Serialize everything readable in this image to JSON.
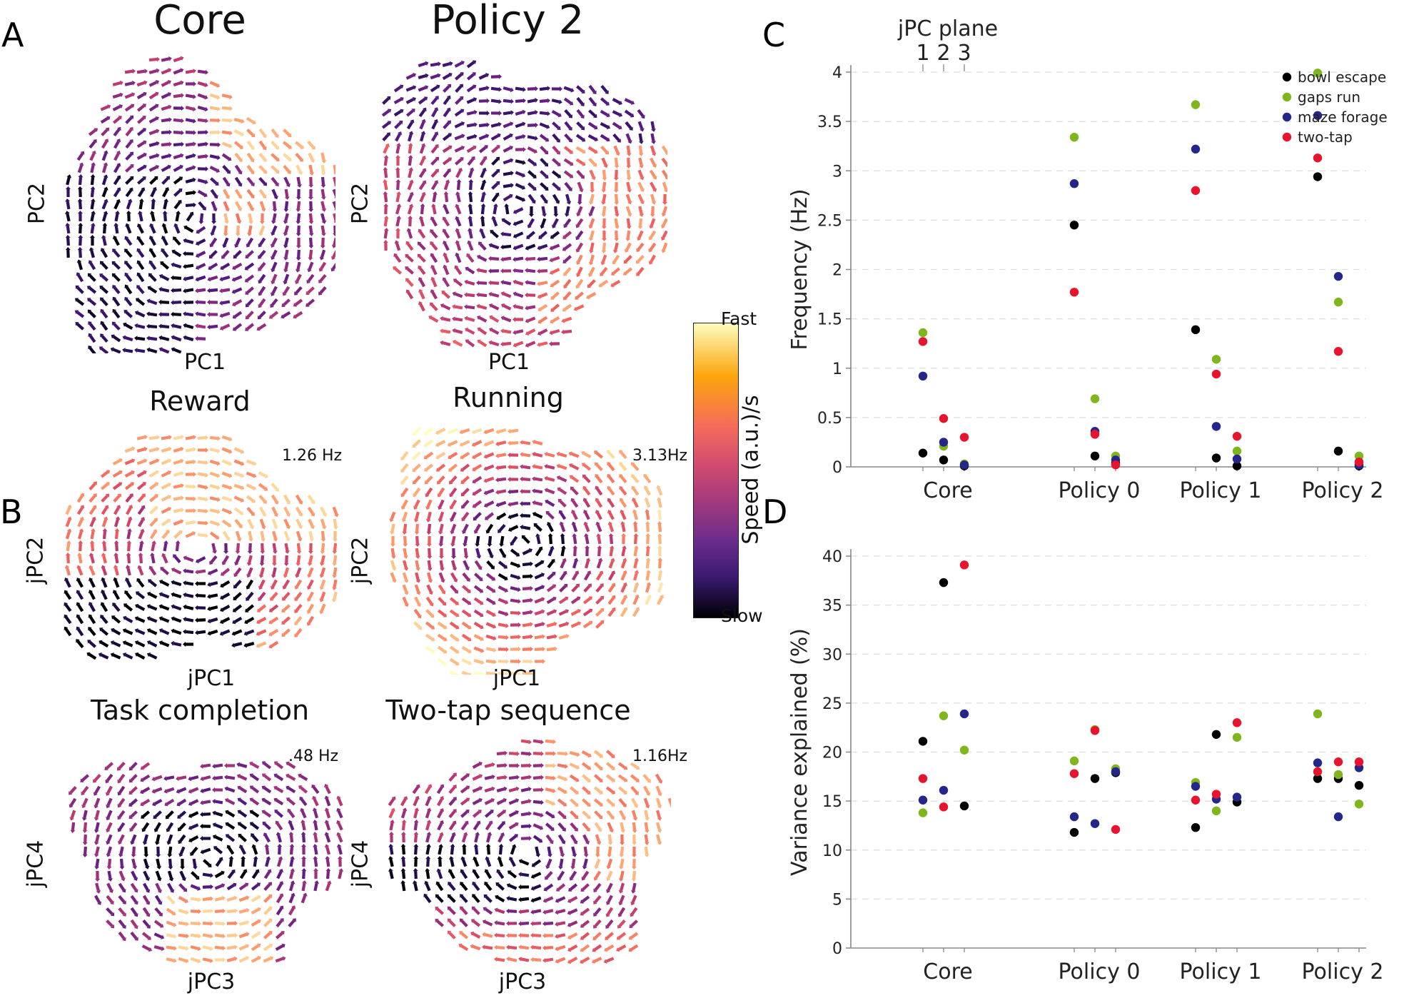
{
  "panels": {
    "A": {
      "letter": "A",
      "left": {
        "title": "Core",
        "xlabel": "PC1",
        "ylabel": "PC2"
      },
      "right": {
        "title": "Policy 2",
        "xlabel": "PC1",
        "ylabel": "PC2"
      }
    },
    "B": {
      "letter": "B",
      "plots": [
        {
          "title": "Reward",
          "xlabel": "jPC1",
          "ylabel": "jPC2",
          "freq": "1.26 Hz"
        },
        {
          "title": "Running",
          "xlabel": "jPC1",
          "ylabel": "jPC2",
          "freq": "3.13Hz"
        },
        {
          "title": "Task completion",
          "xlabel": "jPC3",
          "ylabel": "jPC4",
          "freq": ".48 Hz"
        },
        {
          "title": "Two-tap sequence",
          "xlabel": "jPC3",
          "ylabel": "jPC4",
          "freq": "1.16Hz"
        }
      ]
    },
    "C": {
      "letter": "C"
    },
    "D": {
      "letter": "D"
    }
  },
  "colorbar": {
    "top": "Fast",
    "bottom": "Slow",
    "label": "Speed (a.u.)/s"
  },
  "colors": {
    "bowl escape": "#000000",
    "gaps run": "#80b61d",
    "maze forage": "#252689",
    "two-tap": "#e8142d",
    "grid": "#dddddd",
    "axis": "#888888"
  },
  "chart_data": [
    {
      "type": "scatter",
      "panel": "C",
      "title": "",
      "ylabel": "Frequency (Hz)",
      "xlabel": "",
      "ylim": [
        0,
        4
      ],
      "yticks": [
        0,
        0.5,
        1,
        1.5,
        2,
        2.5,
        3,
        3.5,
        4
      ],
      "ytick_labels": [
        "0",
        "0.5",
        "1",
        "1.5",
        "2",
        "2.5",
        "3",
        "3.5",
        "4"
      ],
      "categories": [
        "Core",
        "Policy 0",
        "Policy 1",
        "Policy 2"
      ],
      "sub_categories_label": "jPC plane",
      "sub_categories": [
        "1",
        "2",
        "3"
      ],
      "legend": [
        "bowl escape",
        "gaps run",
        "maze forage",
        "two-tap"
      ],
      "legend_position": "top-right",
      "series": [
        {
          "name": "bowl escape",
          "values": [
            [
              0.14,
              0.07,
              0.01
            ],
            [
              2.45,
              0.11,
              0.04
            ],
            [
              1.39,
              0.09,
              0.01
            ],
            [
              2.94,
              0.16,
              0.01
            ]
          ]
        },
        {
          "name": "gaps run",
          "values": [
            [
              1.36,
              0.21,
              0.03
            ],
            [
              3.34,
              0.69,
              0.11
            ],
            [
              3.67,
              1.09,
              0.16
            ],
            [
              3.99,
              1.67,
              0.11
            ]
          ]
        },
        {
          "name": "maze forage",
          "values": [
            [
              0.92,
              0.25,
              0.02
            ],
            [
              2.87,
              0.36,
              0.07
            ],
            [
              3.22,
              0.41,
              0.08
            ],
            [
              3.56,
              1.93,
              0.02
            ]
          ]
        },
        {
          "name": "two-tap",
          "values": [
            [
              1.27,
              0.49,
              0.3
            ],
            [
              1.77,
              0.33,
              0.02
            ],
            [
              2.8,
              0.94,
              0.31
            ],
            [
              3.13,
              1.17,
              0.05
            ]
          ]
        }
      ]
    },
    {
      "type": "scatter",
      "panel": "D",
      "title": "",
      "ylabel": "Variance explained (%)",
      "xlabel": "",
      "ylim": [
        0,
        40
      ],
      "yticks": [
        0,
        5,
        10,
        15,
        20,
        25,
        30,
        35,
        40
      ],
      "ytick_labels": [
        "0",
        "5",
        "10",
        "15",
        "20",
        "25",
        "30",
        "35",
        "40"
      ],
      "categories": [
        "Core",
        "Policy 0",
        "Policy 1",
        "Policy 2"
      ],
      "sub_categories": [
        "1",
        "2",
        "3"
      ],
      "series": [
        {
          "name": "bowl escape",
          "values": [
            [
              21.1,
              37.3,
              14.5
            ],
            [
              11.8,
              17.3,
              17.9
            ],
            [
              12.3,
              21.8,
              14.9
            ],
            [
              17.3,
              17.3,
              16.6
            ]
          ]
        },
        {
          "name": "gaps run",
          "values": [
            [
              13.8,
              23.7,
              20.2
            ],
            [
              19.1,
              22.3,
              18.3
            ],
            [
              16.9,
              14.0,
              21.5
            ],
            [
              23.9,
              17.7,
              14.7
            ]
          ]
        },
        {
          "name": "maze forage",
          "values": [
            [
              15.1,
              16.1,
              23.9
            ],
            [
              13.4,
              12.7,
              18.0
            ],
            [
              16.5,
              15.2,
              15.4
            ],
            [
              18.9,
              13.4,
              18.4
            ]
          ]
        },
        {
          "name": "two-tap",
          "values": [
            [
              17.3,
              14.4,
              39.1
            ],
            [
              17.8,
              22.2,
              12.1
            ],
            [
              15.1,
              15.7,
              23.0
            ],
            [
              18.0,
              19.0,
              19.0
            ]
          ]
        }
      ]
    }
  ]
}
